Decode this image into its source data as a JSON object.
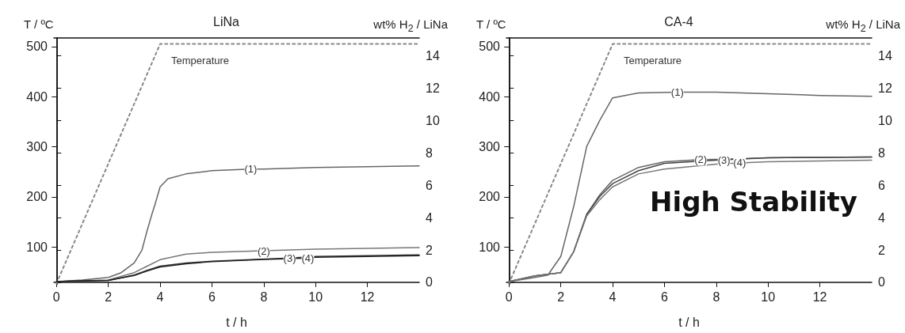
{
  "chart_data": [
    {
      "type": "line",
      "title": "LiNa",
      "xlabel": "t / h",
      "ylabel": "T / ºC",
      "y2label": "wt% H$_{2}$ / LiNa",
      "xlim": [
        -0.1,
        14
      ],
      "xticks": [
        0,
        2,
        4,
        6,
        8,
        10,
        12
      ],
      "ylim": [
        26,
        517
      ],
      "yticks": [
        100,
        200,
        300,
        400,
        500
      ],
      "y2lim": [
        -0.1,
        15.1
      ],
      "y2ticks": [
        0,
        2,
        4,
        6,
        8,
        10,
        12,
        14
      ],
      "grid": false,
      "legend": false,
      "marker": "none",
      "series": [
        {
          "name": "Temperature",
          "color": "#888888",
          "axis": "y",
          "line_style": "dotted",
          "x": [
            0,
            4,
            14
          ],
          "values": [
            27,
            505,
            505
          ]
        },
        {
          "name": "(1)",
          "color": "#666666",
          "axis": "y2",
          "line_style": "solid",
          "x": [
            0,
            1,
            2,
            2.5,
            3,
            3.3,
            3.5,
            3.7,
            3.8,
            4,
            4.3,
            5,
            6,
            7.5,
            8,
            10,
            12,
            14
          ],
          "values": [
            0.05,
            0.15,
            0.3,
            0.6,
            1.2,
            2.0,
            3.2,
            4.3,
            4.8,
            5.9,
            6.4,
            6.7,
            6.9,
            7.0,
            7.0,
            7.1,
            7.15,
            7.2
          ]
        },
        {
          "name": "(2)",
          "color": "#777777",
          "axis": "y2",
          "line_style": "solid",
          "x": [
            0,
            1,
            2,
            3,
            3.5,
            4,
            5,
            6,
            8,
            10,
            12,
            14
          ],
          "values": [
            0.05,
            0.1,
            0.15,
            0.6,
            1.0,
            1.4,
            1.75,
            1.85,
            1.95,
            2.05,
            2.1,
            2.15
          ]
        },
        {
          "name": "(3)",
          "color": "#333333",
          "axis": "y2",
          "line_style": "solid",
          "x": [
            0,
            1,
            2,
            3,
            3.5,
            4,
            5,
            6,
            7.5,
            9,
            10,
            12,
            14
          ],
          "values": [
            0.05,
            0.1,
            0.12,
            0.45,
            0.75,
            1.0,
            1.2,
            1.3,
            1.4,
            1.5,
            1.6,
            1.65,
            1.7
          ]
        },
        {
          "name": "(4)",
          "color": "#222222",
          "axis": "y2",
          "line_style": "solid",
          "x": [
            0,
            1,
            2,
            3,
            3.5,
            4,
            5,
            6,
            8,
            9.7,
            10,
            12,
            14
          ],
          "values": [
            0.05,
            0.1,
            0.12,
            0.42,
            0.7,
            0.95,
            1.15,
            1.28,
            1.42,
            1.5,
            1.55,
            1.6,
            1.65
          ]
        }
      ]
    },
    {
      "type": "line",
      "title": "CA-4",
      "xlabel": "t / h",
      "ylabel": "T / ºC",
      "y2label": "wt% H$_{2}$ / LiNa",
      "xlim": [
        -0.1,
        14
      ],
      "xticks": [
        0,
        2,
        4,
        6,
        8,
        10,
        12
      ],
      "ylim": [
        26,
        517
      ],
      "yticks": [
        100,
        200,
        300,
        400,
        500
      ],
      "y2lim": [
        -0.1,
        15.1
      ],
      "y2ticks": [
        0,
        2,
        4,
        6,
        8,
        10,
        12,
        14
      ],
      "grid": false,
      "legend": false,
      "marker": "none",
      "annotations": [
        "High Stability"
      ],
      "series": [
        {
          "name": "Temperature",
          "color": "#888888",
          "axis": "y",
          "line_style": "dotted",
          "x": [
            0,
            4,
            14
          ],
          "values": [
            27,
            505,
            505
          ]
        },
        {
          "name": "(1)",
          "color": "#666666",
          "axis": "y2",
          "line_style": "solid",
          "x": [
            0,
            1,
            1.5,
            2,
            2.5,
            3,
            3.5,
            4,
            5,
            6.5,
            8,
            10,
            12,
            14
          ],
          "values": [
            0.05,
            0.3,
            0.45,
            1.6,
            4.7,
            8.4,
            10.0,
            11.4,
            11.7,
            11.75,
            11.75,
            11.65,
            11.55,
            11.5
          ]
        },
        {
          "name": "(2)",
          "color": "#666666",
          "axis": "y2",
          "line_style": "solid",
          "x": [
            0,
            1,
            2,
            2.5,
            3,
            3.5,
            4,
            5,
            6,
            7.4,
            8,
            10,
            12,
            14
          ],
          "values": [
            0.05,
            0.4,
            0.6,
            1.9,
            4.2,
            5.4,
            6.3,
            7.1,
            7.45,
            7.58,
            7.6,
            7.7,
            7.72,
            7.75
          ]
        },
        {
          "name": "(3)",
          "color": "#444444",
          "axis": "y2",
          "line_style": "solid",
          "x": [
            0,
            1,
            2,
            2.5,
            3,
            3.5,
            4,
            5,
            6,
            8,
            8.3,
            10,
            12,
            14
          ],
          "values": [
            0.05,
            0.4,
            0.6,
            1.9,
            4.2,
            5.3,
            6.1,
            6.9,
            7.35,
            7.55,
            7.57,
            7.7,
            7.72,
            7.75
          ]
        },
        {
          "name": "(4)",
          "color": "#777777",
          "axis": "y2",
          "line_style": "solid",
          "x": [
            0,
            1,
            2,
            2.5,
            3,
            3.5,
            4,
            5,
            6,
            8,
            8.9,
            10,
            12,
            14
          ],
          "values": [
            0.05,
            0.4,
            0.6,
            1.9,
            4.1,
            5.1,
            5.9,
            6.7,
            7.0,
            7.3,
            7.38,
            7.45,
            7.5,
            7.55
          ]
        }
      ]
    }
  ]
}
